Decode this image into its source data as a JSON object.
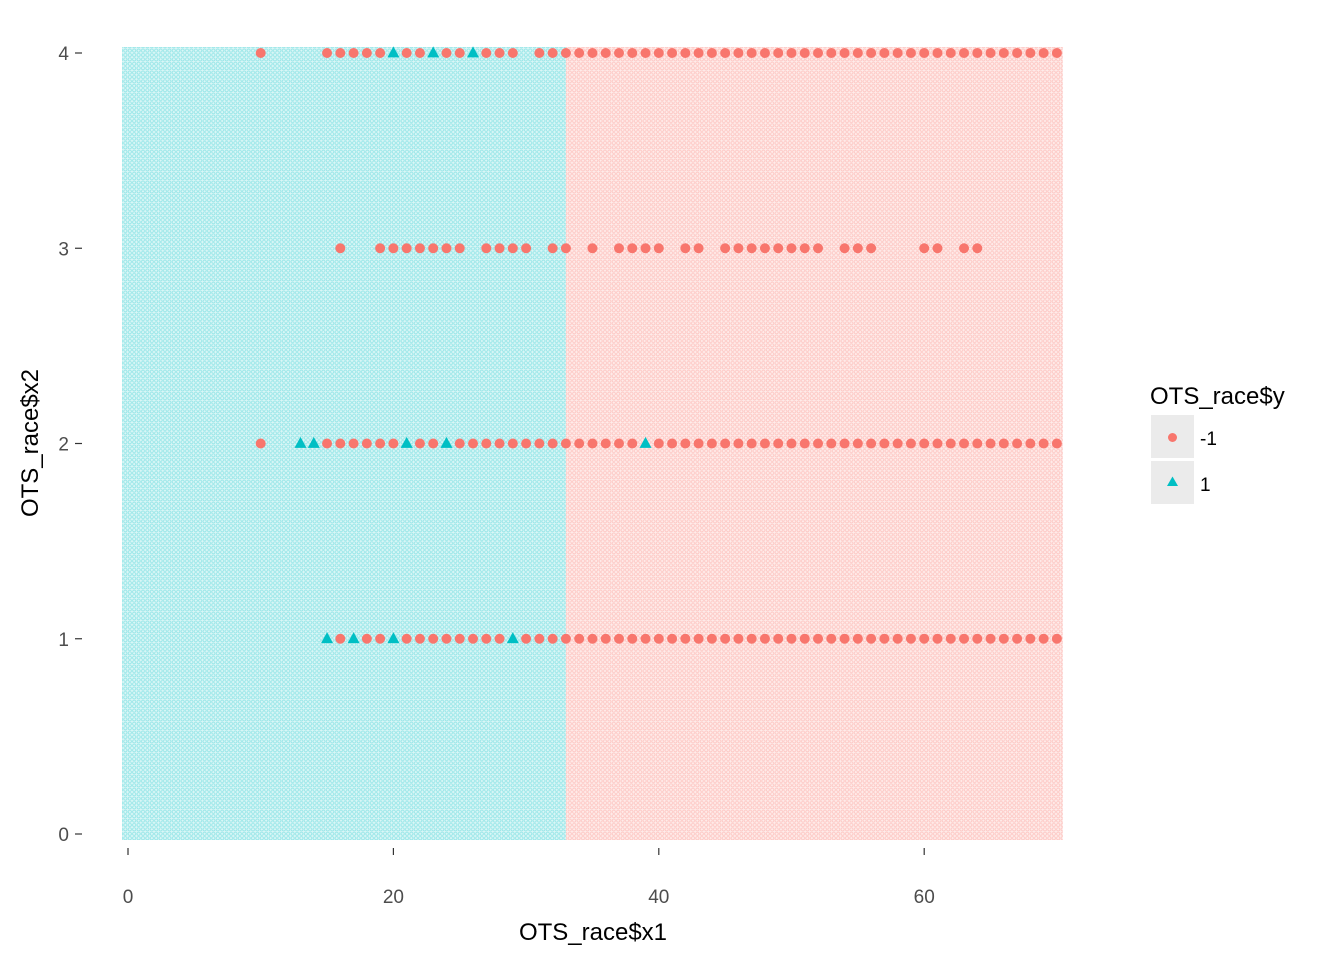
{
  "chart_data": {
    "type": "scatter",
    "title": "",
    "xlabel": "OTS_race$x1",
    "ylabel": "OTS_race$x2",
    "xlim": [
      0,
      70
    ],
    "ylim": [
      0,
      4
    ],
    "x_ticks": [
      0,
      20,
      40,
      60
    ],
    "y_ticks": [
      0,
      1,
      2,
      3,
      4
    ],
    "grid": false,
    "legend": {
      "title": "OTS_race$y",
      "placement": "right",
      "entries": [
        {
          "label": "-1",
          "shape": "circle",
          "color": "#F8766D"
        },
        {
          "label": "1",
          "shape": "triangle",
          "color": "#00BFC4"
        }
      ]
    },
    "background_regions": [
      {
        "class": "1",
        "x_range": [
          0,
          33
        ],
        "color": "#00BFC4"
      },
      {
        "class": "-1",
        "x_range": [
          33,
          70
        ],
        "color": "#F8766D"
      }
    ],
    "series": [
      {
        "name": "-1",
        "shape": "circle",
        "color": "#F8766D",
        "points": [
          [
            10,
            4
          ],
          [
            15,
            4
          ],
          [
            16,
            4
          ],
          [
            17,
            4
          ],
          [
            18,
            4
          ],
          [
            19,
            4
          ],
          [
            21,
            4
          ],
          [
            22,
            4
          ],
          [
            24,
            4
          ],
          [
            25,
            4
          ],
          [
            27,
            4
          ],
          [
            28,
            4
          ],
          [
            29,
            4
          ],
          [
            31,
            4
          ],
          [
            32,
            4
          ],
          [
            33,
            4
          ],
          [
            34,
            4
          ],
          [
            35,
            4
          ],
          [
            36,
            4
          ],
          [
            37,
            4
          ],
          [
            38,
            4
          ],
          [
            39,
            4
          ],
          [
            40,
            4
          ],
          [
            41,
            4
          ],
          [
            42,
            4
          ],
          [
            43,
            4
          ],
          [
            44,
            4
          ],
          [
            45,
            4
          ],
          [
            46,
            4
          ],
          [
            47,
            4
          ],
          [
            48,
            4
          ],
          [
            49,
            4
          ],
          [
            50,
            4
          ],
          [
            51,
            4
          ],
          [
            52,
            4
          ],
          [
            53,
            4
          ],
          [
            54,
            4
          ],
          [
            55,
            4
          ],
          [
            56,
            4
          ],
          [
            57,
            4
          ],
          [
            58,
            4
          ],
          [
            59,
            4
          ],
          [
            60,
            4
          ],
          [
            61,
            4
          ],
          [
            62,
            4
          ],
          [
            63,
            4
          ],
          [
            64,
            4
          ],
          [
            65,
            4
          ],
          [
            66,
            4
          ],
          [
            67,
            4
          ],
          [
            68,
            4
          ],
          [
            69,
            4
          ],
          [
            70,
            4
          ],
          [
            16,
            3
          ],
          [
            19,
            3
          ],
          [
            20,
            3
          ],
          [
            21,
            3
          ],
          [
            22,
            3
          ],
          [
            23,
            3
          ],
          [
            24,
            3
          ],
          [
            25,
            3
          ],
          [
            27,
            3
          ],
          [
            28,
            3
          ],
          [
            29,
            3
          ],
          [
            30,
            3
          ],
          [
            32,
            3
          ],
          [
            33,
            3
          ],
          [
            35,
            3
          ],
          [
            37,
            3
          ],
          [
            38,
            3
          ],
          [
            39,
            3
          ],
          [
            40,
            3
          ],
          [
            42,
            3
          ],
          [
            43,
            3
          ],
          [
            45,
            3
          ],
          [
            46,
            3
          ],
          [
            47,
            3
          ],
          [
            48,
            3
          ],
          [
            49,
            3
          ],
          [
            50,
            3
          ],
          [
            51,
            3
          ],
          [
            52,
            3
          ],
          [
            54,
            3
          ],
          [
            55,
            3
          ],
          [
            56,
            3
          ],
          [
            60,
            3
          ],
          [
            61,
            3
          ],
          [
            63,
            3
          ],
          [
            64,
            3
          ],
          [
            10,
            2
          ],
          [
            15,
            2
          ],
          [
            16,
            2
          ],
          [
            17,
            2
          ],
          [
            18,
            2
          ],
          [
            19,
            2
          ],
          [
            20,
            2
          ],
          [
            22,
            2
          ],
          [
            23,
            2
          ],
          [
            25,
            2
          ],
          [
            26,
            2
          ],
          [
            27,
            2
          ],
          [
            28,
            2
          ],
          [
            29,
            2
          ],
          [
            30,
            2
          ],
          [
            31,
            2
          ],
          [
            32,
            2
          ],
          [
            33,
            2
          ],
          [
            34,
            2
          ],
          [
            35,
            2
          ],
          [
            36,
            2
          ],
          [
            37,
            2
          ],
          [
            38,
            2
          ],
          [
            40,
            2
          ],
          [
            41,
            2
          ],
          [
            42,
            2
          ],
          [
            43,
            2
          ],
          [
            44,
            2
          ],
          [
            45,
            2
          ],
          [
            46,
            2
          ],
          [
            47,
            2
          ],
          [
            48,
            2
          ],
          [
            49,
            2
          ],
          [
            50,
            2
          ],
          [
            51,
            2
          ],
          [
            52,
            2
          ],
          [
            53,
            2
          ],
          [
            54,
            2
          ],
          [
            55,
            2
          ],
          [
            56,
            2
          ],
          [
            57,
            2
          ],
          [
            58,
            2
          ],
          [
            59,
            2
          ],
          [
            60,
            2
          ],
          [
            61,
            2
          ],
          [
            62,
            2
          ],
          [
            63,
            2
          ],
          [
            64,
            2
          ],
          [
            65,
            2
          ],
          [
            66,
            2
          ],
          [
            67,
            2
          ],
          [
            68,
            2
          ],
          [
            69,
            2
          ],
          [
            70,
            2
          ],
          [
            16,
            1
          ],
          [
            18,
            1
          ],
          [
            19,
            1
          ],
          [
            21,
            1
          ],
          [
            22,
            1
          ],
          [
            23,
            1
          ],
          [
            24,
            1
          ],
          [
            25,
            1
          ],
          [
            26,
            1
          ],
          [
            27,
            1
          ],
          [
            28,
            1
          ],
          [
            30,
            1
          ],
          [
            31,
            1
          ],
          [
            32,
            1
          ],
          [
            33,
            1
          ],
          [
            34,
            1
          ],
          [
            35,
            1
          ],
          [
            36,
            1
          ],
          [
            37,
            1
          ],
          [
            38,
            1
          ],
          [
            39,
            1
          ],
          [
            40,
            1
          ],
          [
            41,
            1
          ],
          [
            42,
            1
          ],
          [
            43,
            1
          ],
          [
            44,
            1
          ],
          [
            45,
            1
          ],
          [
            46,
            1
          ],
          [
            47,
            1
          ],
          [
            48,
            1
          ],
          [
            49,
            1
          ],
          [
            50,
            1
          ],
          [
            51,
            1
          ],
          [
            52,
            1
          ],
          [
            53,
            1
          ],
          [
            54,
            1
          ],
          [
            55,
            1
          ],
          [
            56,
            1
          ],
          [
            57,
            1
          ],
          [
            58,
            1
          ],
          [
            59,
            1
          ],
          [
            60,
            1
          ],
          [
            61,
            1
          ],
          [
            62,
            1
          ],
          [
            63,
            1
          ],
          [
            64,
            1
          ],
          [
            65,
            1
          ],
          [
            66,
            1
          ],
          [
            67,
            1
          ],
          [
            68,
            1
          ],
          [
            69,
            1
          ],
          [
            70,
            1
          ]
        ]
      },
      {
        "name": "1",
        "shape": "triangle",
        "color": "#00BFC4",
        "points": [
          [
            20,
            4
          ],
          [
            23,
            4
          ],
          [
            26,
            4
          ],
          [
            13,
            2
          ],
          [
            14,
            2
          ],
          [
            21,
            2
          ],
          [
            24,
            2
          ],
          [
            39,
            2
          ],
          [
            15,
            1
          ],
          [
            17,
            1
          ],
          [
            20,
            1
          ],
          [
            29,
            1
          ]
        ]
      }
    ]
  }
}
